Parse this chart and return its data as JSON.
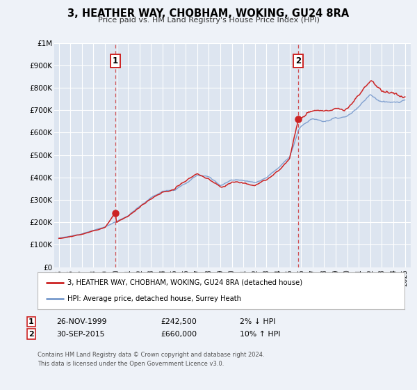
{
  "title": "3, HEATHER WAY, CHOBHAM, WOKING, GU24 8RA",
  "subtitle": "Price paid vs. HM Land Registry's House Price Index (HPI)",
  "background_color": "#eef2f8",
  "plot_bg_color": "#dde5f0",
  "grid_color": "#ffffff",
  "sale1_date": 1999.9,
  "sale1_price": 242500,
  "sale1_label": "1",
  "sale2_date": 2015.75,
  "sale2_price": 660000,
  "sale2_label": "2",
  "vline1_x": 1999.9,
  "vline2_x": 2015.75,
  "ylim": [
    0,
    1000000
  ],
  "xlim_start": 1994.6,
  "xlim_end": 2025.5,
  "yticks": [
    0,
    100000,
    200000,
    300000,
    400000,
    500000,
    600000,
    700000,
    800000,
    900000,
    1000000
  ],
  "ytick_labels": [
    "£0",
    "£100K",
    "£200K",
    "£300K",
    "£400K",
    "£500K",
    "£600K",
    "£700K",
    "£800K",
    "£900K",
    "£1M"
  ],
  "xtick_years": [
    1995,
    1996,
    1997,
    1998,
    1999,
    2000,
    2001,
    2002,
    2003,
    2004,
    2005,
    2006,
    2007,
    2008,
    2009,
    2010,
    2011,
    2012,
    2013,
    2014,
    2015,
    2016,
    2017,
    2018,
    2019,
    2020,
    2021,
    2022,
    2023,
    2024,
    2025
  ],
  "hpi_color": "#7799cc",
  "price_color": "#cc2222",
  "legend_label_price": "3, HEATHER WAY, CHOBHAM, WOKING, GU24 8RA (detached house)",
  "legend_label_hpi": "HPI: Average price, detached house, Surrey Heath",
  "annotation1_box_label": "1",
  "annotation1_date": "26-NOV-1999",
  "annotation1_price": "£242,500",
  "annotation1_hpi": "2% ↓ HPI",
  "annotation2_box_label": "2",
  "annotation2_date": "30-SEP-2015",
  "annotation2_price": "£660,000",
  "annotation2_hpi": "10% ↑ HPI",
  "footer": "Contains HM Land Registry data © Crown copyright and database right 2024.\nThis data is licensed under the Open Government Licence v3.0."
}
